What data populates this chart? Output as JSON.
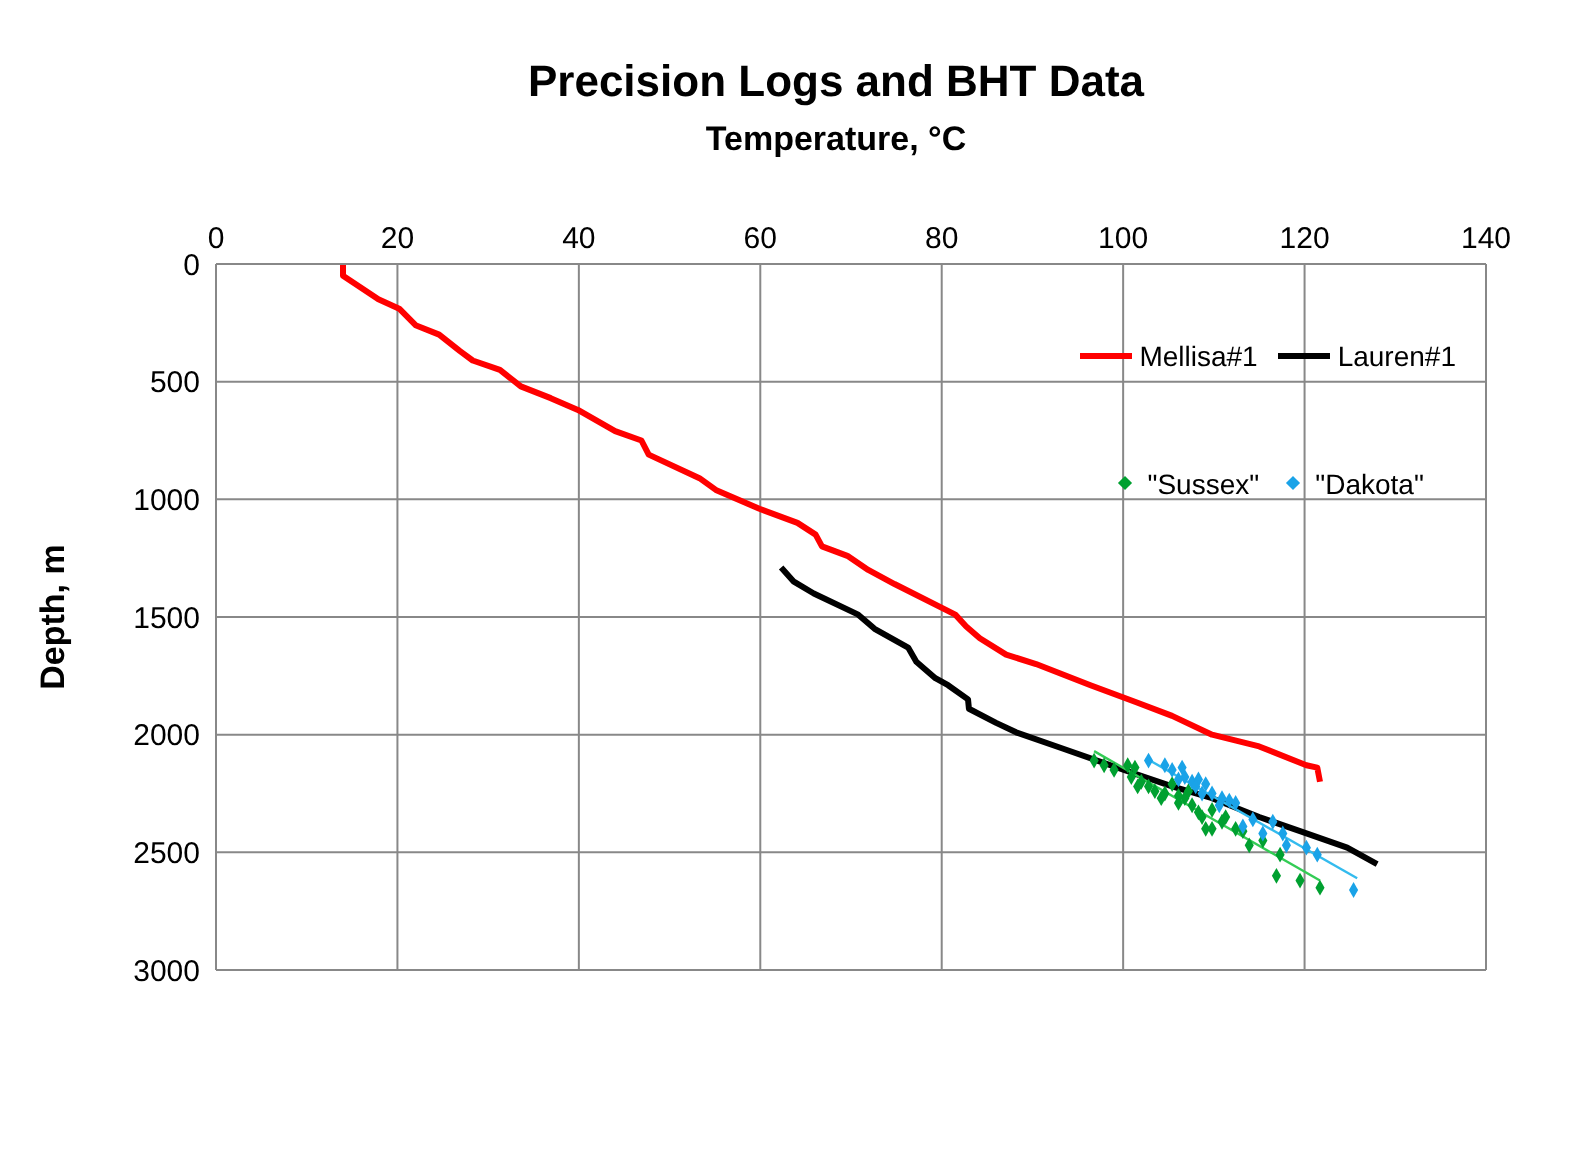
{
  "chart_data": {
    "type": "line",
    "title": "Precision Logs and BHT Data",
    "xlabel": "Temperature, °C",
    "ylabel": "Depth, m",
    "xlim": [
      0,
      140
    ],
    "xticks": [
      0,
      20,
      40,
      60,
      80,
      100,
      120,
      140
    ],
    "ylim": [
      3000,
      0
    ],
    "yticks": [
      0,
      500,
      1000,
      1500,
      2000,
      2500,
      3000
    ],
    "grid": true,
    "legend": "top right",
    "line_style": "solid",
    "series": [
      {
        "name": "Mellisa#1",
        "marker": "none",
        "color": "#ff0000",
        "x": [
          14.0,
          14.0,
          17.9,
          20.2,
          22.0,
          24.6,
          26.9,
          28.3,
          31.3,
          33.6,
          36.9,
          39.9,
          44.0,
          46.9,
          47.7,
          53.3,
          55.1,
          59.9,
          64.1,
          66.1,
          66.8,
          69.6,
          71.9,
          74.8,
          81.5,
          82.7,
          84.2,
          87.1,
          90.4,
          96.4,
          101.3,
          105.4,
          109.8,
          115.0,
          120.2,
          121.4,
          121.7
        ],
        "values": [
          0,
          50,
          150,
          190,
          260,
          300,
          370,
          410,
          450,
          520,
          570,
          620,
          710,
          750,
          810,
          910,
          960,
          1040,
          1100,
          1150,
          1200,
          1240,
          1300,
          1360,
          1490,
          1540,
          1590,
          1660,
          1700,
          1790,
          1860,
          1920,
          2000,
          2050,
          2130,
          2140,
          2200
        ]
      },
      {
        "name": "Lauren#1",
        "marker": "none",
        "color": "#000000",
        "x": [
          62.3,
          63.7,
          65.9,
          70.8,
          72.6,
          76.3,
          77.2,
          79.3,
          80.7,
          82.9,
          83.0,
          86.0,
          88.2,
          93.4,
          100.1,
          105.4,
          109.8,
          115.0,
          119.5,
          124.7,
          128.0
        ],
        "values": [
          1290,
          1350,
          1400,
          1490,
          1550,
          1630,
          1690,
          1760,
          1790,
          1850,
          1890,
          1950,
          1990,
          2060,
          2150,
          2220,
          2270,
          2350,
          2410,
          2480,
          2550
        ]
      },
      {
        "name": "\"Sussex\"",
        "type": "scatter",
        "marker": "diamond",
        "color": "#00a030",
        "x": [
          96.8,
          97.9,
          99.0,
          100.5,
          101.3,
          100.9,
          102.0,
          101.6,
          102.8,
          103.5,
          104.2,
          104.6,
          105.4,
          106.1,
          106.8,
          107.6,
          108.3,
          108.7,
          109.1,
          109.8,
          110.9,
          111.3,
          112.4,
          113.2,
          113.9,
          115.4,
          117.3,
          116.9,
          119.5,
          121.7,
          109.8,
          107.2,
          106.1
        ],
        "values": [
          2110,
          2130,
          2150,
          2130,
          2140,
          2180,
          2200,
          2220,
          2220,
          2240,
          2270,
          2250,
          2210,
          2260,
          2270,
          2300,
          2330,
          2350,
          2400,
          2400,
          2370,
          2350,
          2400,
          2410,
          2470,
          2450,
          2510,
          2600,
          2620,
          2650,
          2320,
          2240,
          2290
        ]
      },
      {
        "name": "\"Dakota\"",
        "type": "scatter",
        "marker": "diamond",
        "color": "#1aa3e8",
        "x": [
          102.8,
          104.6,
          105.4,
          106.5,
          106.8,
          107.6,
          108.3,
          109.1,
          108.0,
          109.8,
          110.9,
          111.7,
          112.4,
          110.6,
          113.2,
          114.3,
          115.4,
          116.5,
          117.6,
          118.0,
          120.2,
          121.4,
          125.4,
          106.1,
          108.7
        ],
        "values": [
          2110,
          2130,
          2150,
          2140,
          2180,
          2200,
          2190,
          2210,
          2220,
          2250,
          2270,
          2280,
          2290,
          2300,
          2390,
          2360,
          2420,
          2370,
          2420,
          2470,
          2480,
          2510,
          2660,
          2190,
          2250
        ]
      },
      {
        "marker": "none",
        "color": "#33cc55",
        "x": [
          96.8,
          121.7
        ],
        "values": [
          2070,
          2620
        ]
      },
      {
        "marker": "none",
        "color": "#33bbee",
        "x": [
          102.5,
          125.8
        ],
        "values": [
          2100,
          2610
        ]
      }
    ]
  }
}
